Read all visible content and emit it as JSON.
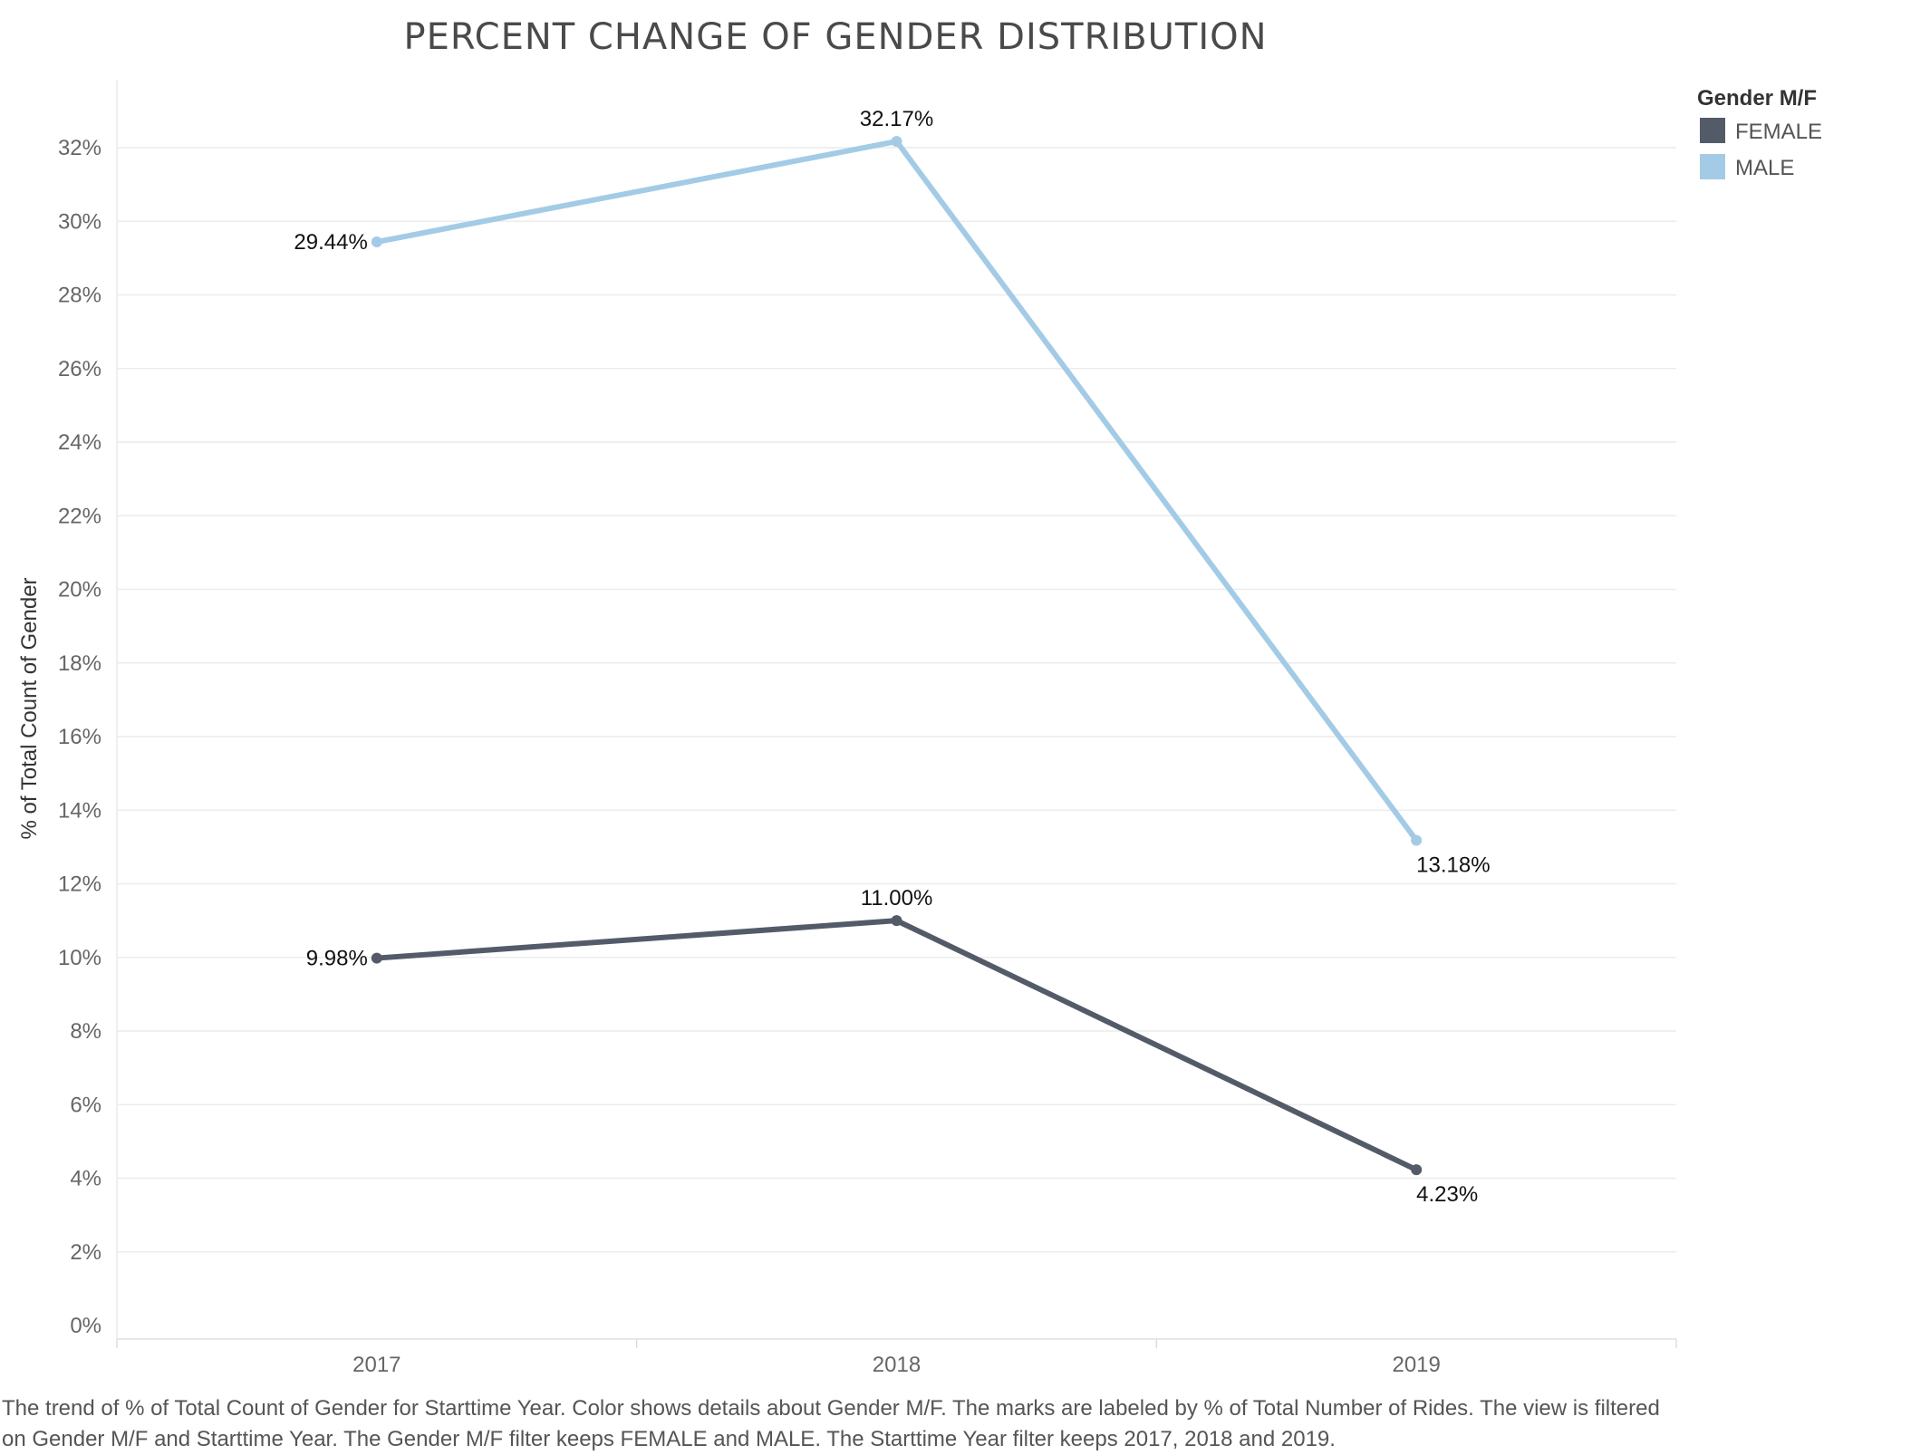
{
  "chart_data": {
    "type": "line",
    "title": "PERCENT CHANGE OF GENDER DISTRIBUTION",
    "xlabel": "",
    "ylabel": "% of Total Count of Gender",
    "categories": [
      "2017",
      "2018",
      "2019"
    ],
    "ylim": [
      0,
      34
    ],
    "yticks": [
      "0%",
      "2%",
      "4%",
      "6%",
      "8%",
      "10%",
      "12%",
      "14%",
      "16%",
      "18%",
      "20%",
      "22%",
      "24%",
      "26%",
      "28%",
      "30%",
      "32%"
    ],
    "ytick_values": [
      0,
      2,
      4,
      6,
      8,
      10,
      12,
      14,
      16,
      18,
      20,
      22,
      24,
      26,
      28,
      30,
      32
    ],
    "grid": true,
    "legend": {
      "title": "Gender M/F",
      "placement": "top-right"
    },
    "series": [
      {
        "name": "FEMALE",
        "color": "#545b68",
        "values": [
          9.98,
          11.0,
          4.23
        ],
        "labels": [
          "9.98%",
          "11.00%",
          "4.23%"
        ]
      },
      {
        "name": "MALE",
        "color": "#a3cbe6",
        "values": [
          29.44,
          32.17,
          13.18
        ],
        "labels": [
          "29.44%",
          "32.17%",
          "13.18%"
        ]
      }
    ]
  },
  "caption": "The trend of % of Total Count of Gender for Starttime Year.  Color shows details about Gender M/F.  The marks are labeled by % of Total Number of Rides. The view is filtered on Gender M/F and Starttime Year. The Gender M/F filter keeps FEMALE and MALE. The Starttime Year filter keeps 2017, 2018 and 2019."
}
